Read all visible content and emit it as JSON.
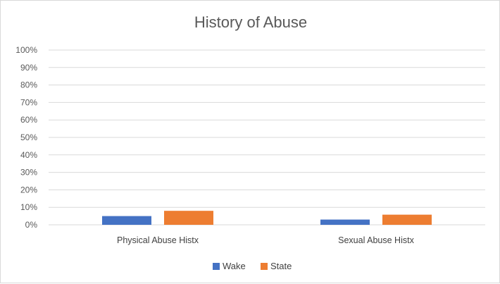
{
  "chart_data": {
    "type": "bar",
    "title": "History of Abuse",
    "xlabel": "",
    "ylabel": "",
    "categories": [
      "Physical Abuse Histx",
      "Sexual Abuse Histx"
    ],
    "series": [
      {
        "name": "Wake",
        "color": "#4472c4",
        "values": [
          0.05,
          0.03
        ]
      },
      {
        "name": "State",
        "color": "#ed7d31",
        "values": [
          0.08,
          0.058
        ]
      }
    ],
    "ylim": [
      0,
      1
    ],
    "yticks": [
      "0%",
      "10%",
      "20%",
      "30%",
      "40%",
      "50%",
      "60%",
      "70%",
      "80%",
      "90%",
      "100%"
    ],
    "grid": true,
    "legend": "bottom"
  }
}
